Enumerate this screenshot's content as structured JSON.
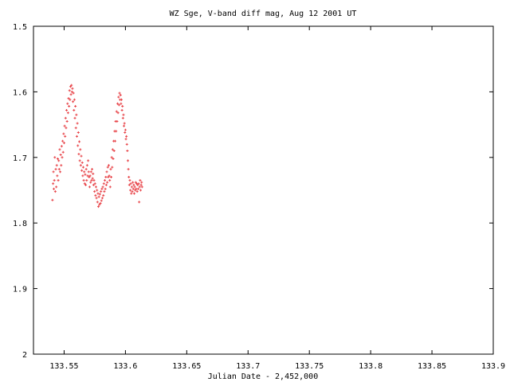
{
  "chart_data": {
    "type": "scatter",
    "title": "WZ Sge, V-band diff mag, Aug 12 2001 UT",
    "xlabel": "Julian Date - 2,452,000",
    "ylabel": "",
    "xlim": [
      133.525,
      133.9
    ],
    "ylim": [
      1.5,
      2.0
    ],
    "y_inverted_axis": true,
    "x_ticks": [
      "133.55",
      "133.6",
      "133.65",
      "133.7",
      "133.75",
      "133.8",
      "133.85",
      "133.9"
    ],
    "x_tick_values": [
      133.55,
      133.6,
      133.65,
      133.7,
      133.75,
      133.8,
      133.85,
      133.9
    ],
    "y_ticks": [
      "1.5",
      "1.6",
      "1.7",
      "1.8",
      "1.9",
      "2"
    ],
    "y_tick_values": [
      1.5,
      1.6,
      1.7,
      1.8,
      1.9,
      2.0
    ],
    "grid": false,
    "marker": "plus",
    "color": "#e8454a",
    "series": [
      {
        "name": "",
        "points": [
          [
            133.5405,
            1.765
          ],
          [
            133.541,
            1.74
          ],
          [
            133.5413,
            1.722
          ],
          [
            133.5416,
            1.748
          ],
          [
            133.542,
            1.735
          ],
          [
            133.5424,
            1.7
          ],
          [
            133.5428,
            1.752
          ],
          [
            133.5432,
            1.718
          ],
          [
            133.5436,
            1.745
          ],
          [
            133.544,
            1.712
          ],
          [
            133.5444,
            1.728
          ],
          [
            133.5448,
            1.702
          ],
          [
            133.5452,
            1.735
          ],
          [
            133.5456,
            1.705
          ],
          [
            133.546,
            1.718
          ],
          [
            133.5464,
            1.688
          ],
          [
            133.5468,
            1.722
          ],
          [
            133.5472,
            1.696
          ],
          [
            133.5476,
            1.712
          ],
          [
            133.548,
            1.683
          ],
          [
            133.5484,
            1.7
          ],
          [
            133.5488,
            1.675
          ],
          [
            133.5492,
            1.692
          ],
          [
            133.5496,
            1.664
          ],
          [
            133.55,
            1.678
          ],
          [
            133.5504,
            1.652
          ],
          [
            133.5508,
            1.668
          ],
          [
            133.5512,
            1.64
          ],
          [
            133.5516,
            1.655
          ],
          [
            133.552,
            1.628
          ],
          [
            133.5524,
            1.645
          ],
          [
            133.5528,
            1.618
          ],
          [
            133.5532,
            1.632
          ],
          [
            133.5536,
            1.61
          ],
          [
            133.554,
            1.622
          ],
          [
            133.5544,
            1.598
          ],
          [
            133.5548,
            1.612
          ],
          [
            133.5552,
            1.592
          ],
          [
            133.5556,
            1.604
          ],
          [
            133.556,
            1.59
          ],
          [
            133.5564,
            1.6
          ],
          [
            133.5568,
            1.595
          ],
          [
            133.5572,
            1.615
          ],
          [
            133.5576,
            1.602
          ],
          [
            133.558,
            1.628
          ],
          [
            133.5584,
            1.612
          ],
          [
            133.5588,
            1.64
          ],
          [
            133.5592,
            1.622
          ],
          [
            133.5596,
            1.655
          ],
          [
            133.56,
            1.635
          ],
          [
            133.5604,
            1.668
          ],
          [
            133.5608,
            1.648
          ],
          [
            133.5612,
            1.682
          ],
          [
            133.5616,
            1.662
          ],
          [
            133.562,
            1.695
          ],
          [
            133.5624,
            1.676
          ],
          [
            133.5628,
            1.705
          ],
          [
            133.5632,
            1.688
          ],
          [
            133.5636,
            1.712
          ],
          [
            133.564,
            1.698
          ],
          [
            133.5644,
            1.72
          ],
          [
            133.5648,
            1.708
          ],
          [
            133.5652,
            1.728
          ],
          [
            133.5656,
            1.715
          ],
          [
            133.566,
            1.735
          ],
          [
            133.5664,
            1.722
          ],
          [
            133.5668,
            1.74
          ],
          [
            133.5672,
            1.726
          ],
          [
            133.5676,
            1.742
          ],
          [
            133.568,
            1.718
          ],
          [
            133.5684,
            1.735
          ],
          [
            133.5688,
            1.712
          ],
          [
            133.5692,
            1.728
          ],
          [
            133.5696,
            1.705
          ],
          [
            133.57,
            1.722
          ],
          [
            133.5704,
            1.73
          ],
          [
            133.5708,
            1.745
          ],
          [
            133.5712,
            1.728
          ],
          [
            133.5716,
            1.738
          ],
          [
            133.572,
            1.722
          ],
          [
            133.5724,
            1.735
          ],
          [
            133.5728,
            1.718
          ],
          [
            133.5732,
            1.732
          ],
          [
            133.5736,
            1.725
          ],
          [
            133.574,
            1.742
          ],
          [
            133.5744,
            1.735
          ],
          [
            133.5748,
            1.752
          ],
          [
            133.5752,
            1.74
          ],
          [
            133.5756,
            1.758
          ],
          [
            133.576,
            1.745
          ],
          [
            133.5764,
            1.762
          ],
          [
            133.5768,
            1.75
          ],
          [
            133.5772,
            1.768
          ],
          [
            133.5776,
            1.755
          ],
          [
            133.578,
            1.775
          ],
          [
            133.5784,
            1.76
          ],
          [
            133.5788,
            1.772
          ],
          [
            133.5792,
            1.756
          ],
          [
            133.5796,
            1.77
          ],
          [
            133.58,
            1.752
          ],
          [
            133.5804,
            1.766
          ],
          [
            133.5808,
            1.748
          ],
          [
            133.5812,
            1.762
          ],
          [
            133.5816,
            1.745
          ],
          [
            133.582,
            1.758
          ],
          [
            133.5824,
            1.74
          ],
          [
            133.5828,
            1.752
          ],
          [
            133.5832,
            1.735
          ],
          [
            133.5836,
            1.748
          ],
          [
            133.584,
            1.73
          ],
          [
            133.5844,
            1.742
          ],
          [
            133.5848,
            1.722
          ],
          [
            133.5852,
            1.738
          ],
          [
            133.5856,
            1.715
          ],
          [
            133.586,
            1.73
          ],
          [
            133.5864,
            1.712
          ],
          [
            133.5868,
            1.728
          ],
          [
            133.5872,
            1.735
          ],
          [
            133.5876,
            1.745
          ],
          [
            133.588,
            1.718
          ],
          [
            133.5884,
            1.73
          ],
          [
            133.5888,
            1.7
          ],
          [
            133.5892,
            1.715
          ],
          [
            133.5896,
            1.688
          ],
          [
            133.59,
            1.702
          ],
          [
            133.5904,
            1.675
          ],
          [
            133.5908,
            1.69
          ],
          [
            133.5912,
            1.66
          ],
          [
            133.5916,
            1.675
          ],
          [
            133.592,
            1.645
          ],
          [
            133.5924,
            1.66
          ],
          [
            133.5928,
            1.63
          ],
          [
            133.5932,
            1.645
          ],
          [
            133.5936,
            1.618
          ],
          [
            133.594,
            1.632
          ],
          [
            133.5944,
            1.608
          ],
          [
            133.5948,
            1.62
          ],
          [
            133.5952,
            1.602
          ],
          [
            133.5956,
            1.612
          ],
          [
            133.596,
            1.605
          ],
          [
            133.5964,
            1.618
          ],
          [
            133.5968,
            1.612
          ],
          [
            133.5972,
            1.628
          ],
          [
            133.5976,
            1.622
          ],
          [
            133.598,
            1.64
          ],
          [
            133.5984,
            1.635
          ],
          [
            133.5988,
            1.652
          ],
          [
            133.5992,
            1.648
          ],
          [
            133.5996,
            1.662
          ],
          [
            133.6,
            1.658
          ],
          [
            133.6004,
            1.672
          ],
          [
            133.6008,
            1.668
          ],
          [
            133.6012,
            1.68
          ],
          [
            133.6016,
            1.69
          ],
          [
            133.602,
            1.705
          ],
          [
            133.6024,
            1.718
          ],
          [
            133.6028,
            1.73
          ],
          [
            133.6032,
            1.742
          ],
          [
            133.6036,
            1.735
          ],
          [
            133.604,
            1.75
          ],
          [
            133.6044,
            1.74
          ],
          [
            133.6048,
            1.755
          ],
          [
            133.6052,
            1.745
          ],
          [
            133.6056,
            1.752
          ],
          [
            133.606,
            1.738
          ],
          [
            133.6064,
            1.748
          ],
          [
            133.6068,
            1.742
          ],
          [
            133.6072,
            1.755
          ],
          [
            133.6076,
            1.745
          ],
          [
            133.608,
            1.75
          ],
          [
            133.6084,
            1.738
          ],
          [
            133.6088,
            1.748
          ],
          [
            133.6092,
            1.74
          ],
          [
            133.6096,
            1.752
          ],
          [
            133.61,
            1.742
          ],
          [
            133.6104,
            1.748
          ],
          [
            133.6108,
            1.74
          ],
          [
            133.6112,
            1.768
          ],
          [
            133.6116,
            1.745
          ],
          [
            133.612,
            1.735
          ],
          [
            133.6124,
            1.75
          ],
          [
            133.6128,
            1.742
          ],
          [
            133.6132,
            1.738
          ],
          [
            133.6136,
            1.745
          ]
        ]
      }
    ]
  }
}
